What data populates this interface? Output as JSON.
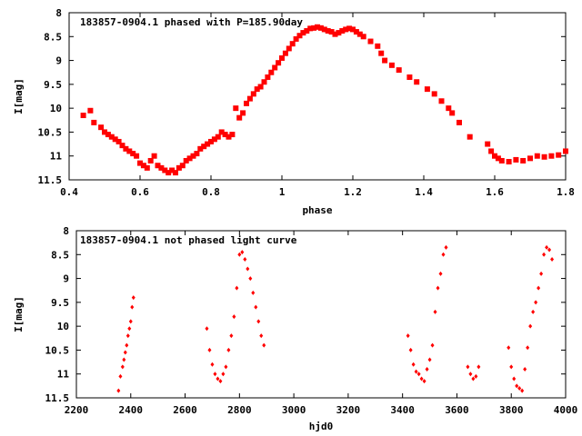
{
  "chart_data": [
    {
      "type": "scatter",
      "title": "183857-0904.1 phased with P=185.90day",
      "xlabel": "phase",
      "ylabel": "I[mag]",
      "xlim": [
        0.4,
        1.8
      ],
      "ylim": [
        11.5,
        8
      ],
      "y_inverted": true,
      "grid": false,
      "marker": "filled square",
      "color": "#ff0000",
      "xticks": [
        "0.4",
        "0.6",
        "0.8",
        "1",
        "1.2",
        "1.4",
        "1.6",
        "1.8"
      ],
      "yticks": [
        "8",
        "8.5",
        "9",
        "9.5",
        "10",
        "10.5",
        "11",
        "11.5"
      ],
      "x": [
        0.44,
        0.46,
        0.47,
        0.49,
        0.5,
        0.51,
        0.52,
        0.53,
        0.54,
        0.55,
        0.56,
        0.57,
        0.58,
        0.59,
        0.6,
        0.61,
        0.62,
        0.63,
        0.64,
        0.65,
        0.66,
        0.67,
        0.68,
        0.69,
        0.7,
        0.71,
        0.72,
        0.73,
        0.74,
        0.75,
        0.76,
        0.77,
        0.78,
        0.79,
        0.8,
        0.81,
        0.82,
        0.83,
        0.84,
        0.85,
        0.86,
        0.87,
        0.88,
        0.89,
        0.9,
        0.91,
        0.92,
        0.93,
        0.94,
        0.95,
        0.96,
        0.97,
        0.98,
        0.99,
        1.0,
        1.01,
        1.02,
        1.03,
        1.04,
        1.05,
        1.06,
        1.07,
        1.08,
        1.09,
        1.1,
        1.11,
        1.12,
        1.13,
        1.14,
        1.15,
        1.16,
        1.17,
        1.18,
        1.19,
        1.2,
        1.21,
        1.22,
        1.23,
        1.25,
        1.27,
        1.28,
        1.29,
        1.31,
        1.33,
        1.36,
        1.38,
        1.41,
        1.43,
        1.45,
        1.47,
        1.48,
        1.5,
        1.53,
        1.58,
        1.59,
        1.6,
        1.61,
        1.62,
        1.64,
        1.66,
        1.68,
        1.7,
        1.72,
        1.74,
        1.76,
        1.78,
        1.8
      ],
      "y": [
        10.15,
        10.05,
        10.3,
        10.4,
        10.5,
        10.55,
        10.6,
        10.65,
        10.7,
        10.78,
        10.85,
        10.9,
        10.95,
        11.0,
        11.15,
        11.2,
        11.25,
        11.1,
        11.0,
        11.2,
        11.25,
        11.3,
        11.35,
        11.3,
        11.35,
        11.25,
        11.2,
        11.1,
        11.05,
        11.0,
        10.95,
        10.85,
        10.8,
        10.75,
        10.7,
        10.65,
        10.6,
        10.5,
        10.55,
        10.6,
        10.55,
        10.0,
        10.2,
        10.1,
        9.9,
        9.8,
        9.7,
        9.6,
        9.55,
        9.45,
        9.35,
        9.25,
        9.15,
        9.05,
        8.95,
        8.85,
        8.75,
        8.65,
        8.55,
        8.48,
        8.42,
        8.38,
        8.33,
        8.32,
        8.3,
        8.32,
        8.35,
        8.38,
        8.4,
        8.45,
        8.42,
        8.38,
        8.35,
        8.33,
        8.35,
        8.4,
        8.45,
        8.5,
        8.6,
        8.7,
        8.85,
        9.0,
        9.1,
        9.2,
        9.35,
        9.45,
        9.6,
        9.7,
        9.85,
        10.0,
        10.1,
        10.3,
        10.6,
        10.75,
        10.9,
        11.0,
        11.05,
        11.1,
        11.12,
        11.08,
        11.1,
        11.05,
        11.0,
        11.02,
        11.0,
        10.98,
        10.9
      ]
    },
    {
      "type": "scatter",
      "title": "183857-0904.1 not phased light curve",
      "xlabel": "hjd0",
      "ylabel": "I[mag]",
      "xlim": [
        2200,
        4000
      ],
      "ylim": [
        11.5,
        8
      ],
      "y_inverted": true,
      "grid": false,
      "marker": "small diamond",
      "color": "#ff0000",
      "xticks": [
        "2200",
        "2400",
        "2600",
        "2800",
        "3000",
        "3200",
        "3400",
        "3600",
        "3800",
        "4000"
      ],
      "yticks": [
        "8",
        "8.5",
        "9",
        "9.5",
        "10",
        "10.5",
        "11",
        "11.5"
      ],
      "x": [
        2355,
        2362,
        2370,
        2375,
        2380,
        2385,
        2390,
        2395,
        2400,
        2405,
        2410,
        2680,
        2690,
        2700,
        2710,
        2720,
        2730,
        2740,
        2750,
        2760,
        2770,
        2780,
        2790,
        2800,
        2810,
        2820,
        2830,
        2840,
        2850,
        2860,
        2870,
        2880,
        2890,
        3420,
        3430,
        3440,
        3450,
        3460,
        3470,
        3480,
        3490,
        3500,
        3510,
        3520,
        3530,
        3540,
        3550,
        3560,
        3640,
        3650,
        3660,
        3670,
        3680,
        3790,
        3800,
        3810,
        3820,
        3830,
        3840,
        3850,
        3860,
        3870,
        3880,
        3890,
        3900,
        3910,
        3920,
        3930,
        3940,
        3950
      ],
      "y": [
        11.35,
        11.05,
        10.85,
        10.7,
        10.55,
        10.4,
        10.2,
        10.05,
        9.9,
        9.6,
        9.4,
        10.05,
        10.5,
        10.8,
        11.0,
        11.1,
        11.15,
        11.0,
        10.85,
        10.5,
        10.2,
        9.8,
        9.2,
        8.5,
        8.45,
        8.6,
        8.8,
        9.0,
        9.3,
        9.6,
        9.9,
        10.2,
        10.4,
        10.2,
        10.5,
        10.8,
        10.95,
        11.0,
        11.1,
        11.15,
        10.9,
        10.7,
        10.4,
        9.7,
        9.2,
        8.9,
        8.5,
        8.35,
        10.85,
        11.0,
        11.1,
        11.05,
        10.85,
        10.45,
        10.85,
        11.1,
        11.25,
        11.3,
        11.35,
        10.9,
        10.45,
        10.0,
        9.7,
        9.5,
        9.2,
        8.9,
        8.5,
        8.35,
        8.4,
        8.6
      ]
    }
  ]
}
